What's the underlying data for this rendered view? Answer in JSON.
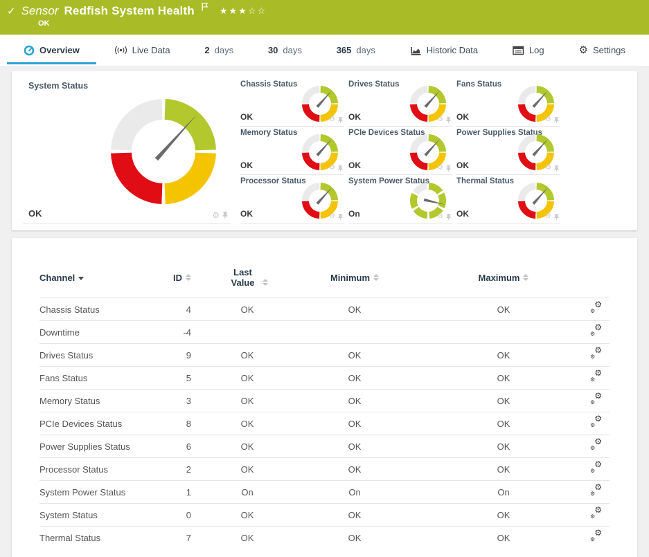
{
  "header": {
    "kind_label": "Sensor",
    "title": "Redfish System Health",
    "status": "OK",
    "stars_filled": "★★★",
    "stars_empty": "☆☆"
  },
  "tabs": [
    {
      "label": "Overview",
      "active": true
    },
    {
      "label": "Live Data"
    },
    {
      "prefix": "2",
      "label": "days"
    },
    {
      "prefix": "30",
      "label": "days"
    },
    {
      "prefix": "365",
      "label": "days"
    },
    {
      "label": "Historic Data"
    },
    {
      "label": "Log"
    },
    {
      "label": "Settings"
    }
  ],
  "colors": {
    "header_green": "#a9bc27",
    "green": "#b2c82d",
    "yellow": "#f4c400",
    "red": "#e00d14",
    "gray": "#eaeaea",
    "needle": "#6b6b6b",
    "active_tab_blue": "#2aa1d8"
  },
  "gauge_types": {
    "quad": [
      {
        "from": 2,
        "to": 88,
        "color": "green"
      },
      {
        "from": 92,
        "to": 178,
        "color": "yellow"
      },
      {
        "from": 182,
        "to": 268,
        "color": "red"
      },
      {
        "from": 272,
        "to": 358,
        "color": "gray"
      }
    ],
    "power": [
      {
        "from": 3,
        "to": 55,
        "color": "green"
      },
      {
        "from": 63,
        "to": 115,
        "color": "green"
      },
      {
        "from": 123,
        "to": 175,
        "color": "green"
      },
      {
        "from": 183,
        "to": 235,
        "color": "green"
      },
      {
        "from": 243,
        "to": 295,
        "color": "green"
      },
      {
        "from": 303,
        "to": 355,
        "color": "gray"
      }
    ]
  },
  "overview": {
    "main_gauge": {
      "title": "System Status",
      "value": "OK",
      "type": "quad",
      "needle_deg": 42
    },
    "mini_gauges": [
      {
        "title": "Chassis Status",
        "value": "OK",
        "type": "quad",
        "needle_deg": 42
      },
      {
        "title": "Drives Status",
        "value": "OK",
        "type": "quad",
        "needle_deg": 42
      },
      {
        "title": "Fans Status",
        "value": "OK",
        "type": "quad",
        "needle_deg": 42
      },
      {
        "title": "Memory Status",
        "value": "OK",
        "type": "quad",
        "needle_deg": 42
      },
      {
        "title": "PCIe Devices Status",
        "value": "OK",
        "type": "quad",
        "needle_deg": 42
      },
      {
        "title": "Power Supplies Status",
        "value": "OK",
        "type": "quad",
        "needle_deg": 42
      },
      {
        "title": "Processor Status",
        "value": "OK",
        "type": "quad",
        "needle_deg": 42
      },
      {
        "title": "System Power Status",
        "value": "On",
        "type": "power",
        "needle_deg": 103
      },
      {
        "title": "Thermal Status",
        "value": "OK",
        "type": "quad",
        "needle_deg": 42
      }
    ]
  },
  "table": {
    "columns": [
      "Channel",
      "ID",
      "Last Value",
      "Minimum",
      "Maximum"
    ],
    "sort": {
      "column": "Channel",
      "direction": "desc"
    },
    "rows": [
      {
        "channel": "Chassis Status",
        "id": "4",
        "last": "OK",
        "min": "OK",
        "max": "OK"
      },
      {
        "channel": "Downtime",
        "id": "-4",
        "last": "",
        "min": "",
        "max": ""
      },
      {
        "channel": "Drives Status",
        "id": "9",
        "last": "OK",
        "min": "OK",
        "max": "OK"
      },
      {
        "channel": "Fans Status",
        "id": "5",
        "last": "OK",
        "min": "OK",
        "max": "OK"
      },
      {
        "channel": "Memory Status",
        "id": "3",
        "last": "OK",
        "min": "OK",
        "max": "OK"
      },
      {
        "channel": "PCIe Devices Status",
        "id": "8",
        "last": "OK",
        "min": "OK",
        "max": "OK"
      },
      {
        "channel": "Power Supplies Status",
        "id": "6",
        "last": "OK",
        "min": "OK",
        "max": "OK"
      },
      {
        "channel": "Processor Status",
        "id": "2",
        "last": "OK",
        "min": "OK",
        "max": "OK"
      },
      {
        "channel": "System Power Status",
        "id": "1",
        "last": "On",
        "min": "On",
        "max": "On"
      },
      {
        "channel": "System Status",
        "id": "0",
        "last": "OK",
        "min": "OK",
        "max": "OK"
      },
      {
        "channel": "Thermal Status",
        "id": "7",
        "last": "OK",
        "min": "OK",
        "max": "OK"
      }
    ]
  }
}
